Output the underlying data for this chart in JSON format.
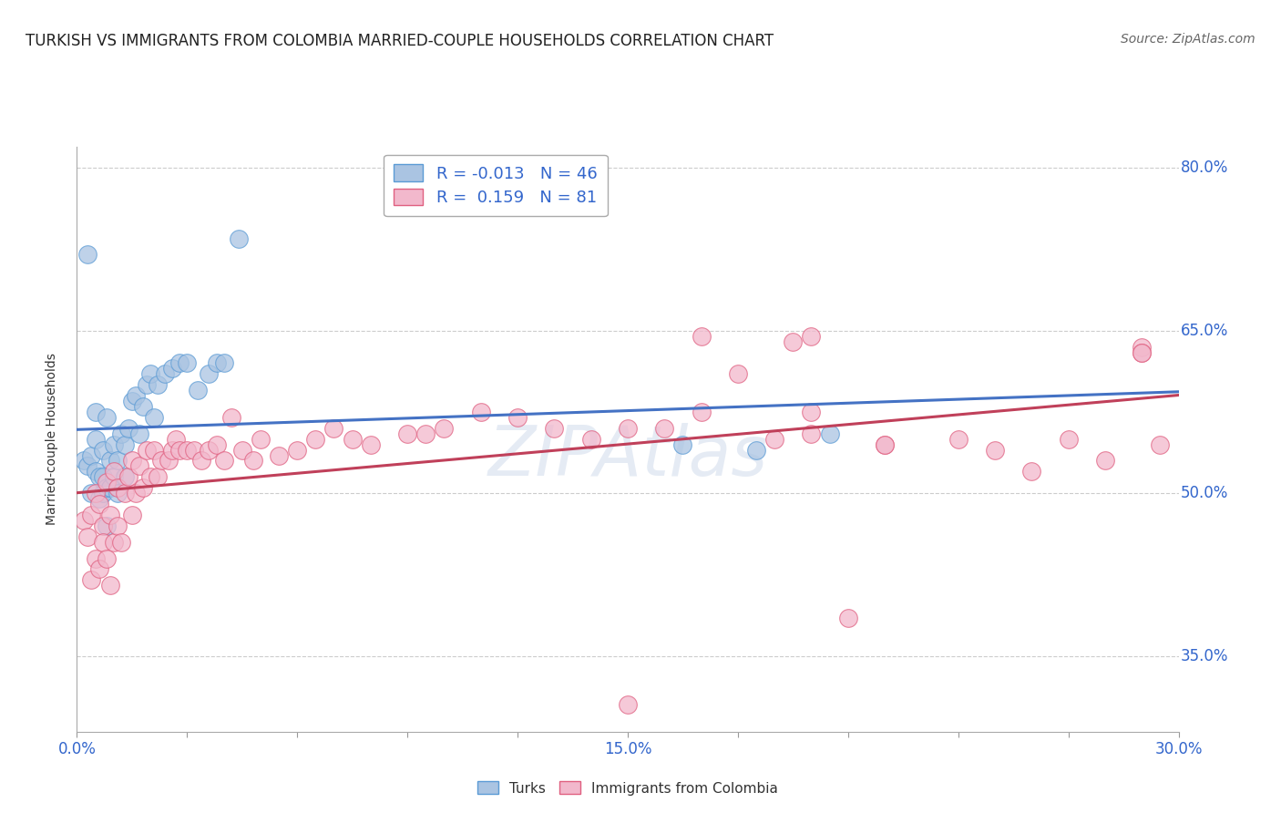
{
  "title": "TURKISH VS IMMIGRANTS FROM COLOMBIA MARRIED-COUPLE HOUSEHOLDS CORRELATION CHART",
  "source": "Source: ZipAtlas.com",
  "ylabel": "Married-couple Households",
  "xlim": [
    0.0,
    0.3
  ],
  "ylim": [
    0.28,
    0.82
  ],
  "ytick_labels": [
    "35.0%",
    "50.0%",
    "65.0%",
    "80.0%"
  ],
  "ytick_values": [
    0.35,
    0.5,
    0.65,
    0.8
  ],
  "xtick_vals": [
    0.0,
    0.03,
    0.06,
    0.09,
    0.12,
    0.15,
    0.18,
    0.21,
    0.24,
    0.27,
    0.3
  ],
  "xtick_labels": [
    "0.0%",
    "",
    "",
    "",
    "",
    "15.0%",
    "",
    "",
    "",
    "",
    "30.0%"
  ],
  "turkish_color": "#aac4e2",
  "colombia_color": "#f2b8cc",
  "turkish_edge_color": "#5b9bd5",
  "colombia_edge_color": "#e06080",
  "turkish_line_color": "#4472c4",
  "colombia_line_color": "#c0405a",
  "background_color": "#ffffff",
  "grid_color": "#cccccc",
  "watermark_color": "#ccd8ea",
  "title_fontsize": 12,
  "source_fontsize": 10,
  "tick_fontsize": 12,
  "ylabel_fontsize": 10,
  "legend_fontsize": 13,
  "turkish_x": [
    0.002,
    0.003,
    0.004,
    0.004,
    0.005,
    0.005,
    0.005,
    0.006,
    0.006,
    0.007,
    0.007,
    0.007,
    0.008,
    0.008,
    0.008,
    0.009,
    0.009,
    0.01,
    0.01,
    0.011,
    0.011,
    0.012,
    0.013,
    0.013,
    0.014,
    0.015,
    0.016,
    0.017,
    0.018,
    0.019,
    0.02,
    0.021,
    0.022,
    0.024,
    0.026,
    0.028,
    0.03,
    0.033,
    0.036,
    0.038,
    0.04,
    0.044,
    0.165,
    0.185,
    0.205,
    0.003
  ],
  "turkish_y": [
    0.53,
    0.525,
    0.5,
    0.535,
    0.55,
    0.575,
    0.52,
    0.495,
    0.515,
    0.54,
    0.5,
    0.515,
    0.57,
    0.47,
    0.505,
    0.505,
    0.53,
    0.515,
    0.545,
    0.5,
    0.53,
    0.555,
    0.515,
    0.545,
    0.56,
    0.585,
    0.59,
    0.555,
    0.58,
    0.6,
    0.61,
    0.57,
    0.6,
    0.61,
    0.615,
    0.62,
    0.62,
    0.595,
    0.61,
    0.62,
    0.62,
    0.735,
    0.545,
    0.54,
    0.555,
    0.72
  ],
  "colombia_x": [
    0.002,
    0.003,
    0.004,
    0.004,
    0.005,
    0.005,
    0.006,
    0.006,
    0.007,
    0.007,
    0.008,
    0.008,
    0.009,
    0.009,
    0.01,
    0.01,
    0.011,
    0.011,
    0.012,
    0.013,
    0.014,
    0.015,
    0.015,
    0.016,
    0.017,
    0.018,
    0.019,
    0.02,
    0.021,
    0.022,
    0.023,
    0.025,
    0.026,
    0.027,
    0.028,
    0.03,
    0.032,
    0.034,
    0.036,
    0.038,
    0.04,
    0.042,
    0.045,
    0.048,
    0.05,
    0.055,
    0.06,
    0.065,
    0.07,
    0.075,
    0.08,
    0.09,
    0.1,
    0.11,
    0.12,
    0.13,
    0.14,
    0.15,
    0.16,
    0.17,
    0.18,
    0.19,
    0.195,
    0.2,
    0.21,
    0.22,
    0.24,
    0.26,
    0.27,
    0.28,
    0.29,
    0.29,
    0.295,
    0.15,
    0.17,
    0.2,
    0.22,
    0.25,
    0.29,
    0.2,
    0.095
  ],
  "colombia_y": [
    0.475,
    0.46,
    0.48,
    0.42,
    0.5,
    0.44,
    0.49,
    0.43,
    0.47,
    0.455,
    0.51,
    0.44,
    0.48,
    0.415,
    0.52,
    0.455,
    0.47,
    0.505,
    0.455,
    0.5,
    0.515,
    0.48,
    0.53,
    0.5,
    0.525,
    0.505,
    0.54,
    0.515,
    0.54,
    0.515,
    0.53,
    0.53,
    0.54,
    0.55,
    0.54,
    0.54,
    0.54,
    0.53,
    0.54,
    0.545,
    0.53,
    0.57,
    0.54,
    0.53,
    0.55,
    0.535,
    0.54,
    0.55,
    0.56,
    0.55,
    0.545,
    0.555,
    0.56,
    0.575,
    0.57,
    0.56,
    0.55,
    0.56,
    0.56,
    0.575,
    0.61,
    0.55,
    0.64,
    0.575,
    0.385,
    0.545,
    0.55,
    0.52,
    0.55,
    0.53,
    0.635,
    0.63,
    0.545,
    0.305,
    0.645,
    0.555,
    0.545,
    0.54,
    0.63,
    0.645,
    0.555
  ]
}
